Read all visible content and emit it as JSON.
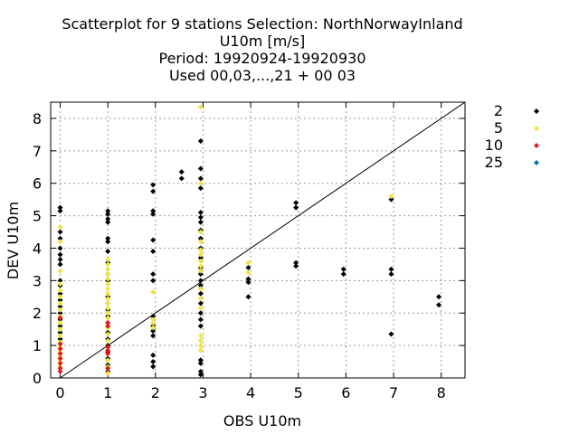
{
  "chart_data": {
    "type": "scatter",
    "title_lines": [
      "Scatterplot for    9 stations Selection: NorthNorwayInland",
      "U10m [m/s]",
      "Period: 19920924-19920930",
      "Used  00,03,...,21  + 00 03"
    ],
    "xlabel": "OBS U10m",
    "ylabel": "DEV U10m",
    "xlim": [
      -0.2,
      8.5
    ],
    "ylim": [
      0,
      8.5
    ],
    "xticks": [
      "0",
      "1",
      "2",
      "3",
      "4",
      "5",
      "6",
      "7",
      "8"
    ],
    "yticks": [
      "0",
      "1",
      "2",
      "3",
      "4",
      "5",
      "6",
      "7",
      "8"
    ],
    "grid": true,
    "diagonal_line": true,
    "legend_position": "right",
    "series": [
      {
        "name": "2",
        "color": "#000000",
        "points": [
          [
            0,
            5.25
          ],
          [
            0,
            5.15
          ],
          [
            0,
            4.5
          ],
          [
            0,
            4.3
          ],
          [
            0,
            4.0
          ],
          [
            0,
            3.8
          ],
          [
            0,
            3.65
          ],
          [
            0,
            3.5
          ],
          [
            0,
            3.0
          ],
          [
            0,
            2.85
          ],
          [
            0,
            2.6
          ],
          [
            0,
            2.4
          ],
          [
            0,
            2.2
          ],
          [
            0,
            2.0
          ],
          [
            0,
            1.8
          ],
          [
            0,
            1.6
          ],
          [
            0,
            1.4
          ],
          [
            0,
            1.2
          ],
          [
            1,
            5.15
          ],
          [
            1,
            5.05
          ],
          [
            1,
            4.9
          ],
          [
            1,
            4.8
          ],
          [
            1,
            4.3
          ],
          [
            1,
            4.2
          ],
          [
            1,
            3.9
          ],
          [
            1,
            3.55
          ],
          [
            1,
            3.2
          ],
          [
            1,
            3.0
          ],
          [
            1,
            2.5
          ],
          [
            1,
            2.3
          ],
          [
            1,
            2.1
          ],
          [
            1,
            1.9
          ],
          [
            1,
            1.7
          ],
          [
            1,
            1.4
          ],
          [
            1,
            1.2
          ],
          [
            1,
            1.0
          ],
          [
            1,
            0.8
          ],
          [
            1,
            0.6
          ],
          [
            1,
            0.4
          ],
          [
            1,
            0.2
          ],
          [
            1.95,
            5.95
          ],
          [
            1.95,
            5.75
          ],
          [
            1.95,
            5.15
          ],
          [
            1.95,
            5.05
          ],
          [
            1.95,
            4.25
          ],
          [
            1.95,
            3.9
          ],
          [
            1.95,
            3.2
          ],
          [
            1.95,
            3.0
          ],
          [
            1.95,
            1.9
          ],
          [
            1.95,
            1.6
          ],
          [
            1.95,
            1.45
          ],
          [
            1.95,
            1.3
          ],
          [
            1.95,
            0.7
          ],
          [
            1.95,
            0.5
          ],
          [
            1.95,
            0.35
          ],
          [
            2.55,
            6.35
          ],
          [
            2.55,
            6.15
          ],
          [
            2.95,
            7.3
          ],
          [
            2.95,
            6.45
          ],
          [
            2.95,
            6.15
          ],
          [
            2.95,
            5.85
          ],
          [
            2.95,
            5.1
          ],
          [
            2.95,
            4.95
          ],
          [
            2.95,
            4.8
          ],
          [
            2.95,
            4.55
          ],
          [
            2.95,
            4.3
          ],
          [
            2.95,
            4.0
          ],
          [
            2.95,
            3.7
          ],
          [
            2.95,
            3.4
          ],
          [
            2.95,
            3.2
          ],
          [
            2.95,
            3.0
          ],
          [
            2.95,
            2.85
          ],
          [
            2.95,
            2.6
          ],
          [
            2.95,
            2.3
          ],
          [
            2.95,
            2.0
          ],
          [
            2.95,
            1.8
          ],
          [
            2.95,
            1.6
          ],
          [
            2.95,
            0.55
          ],
          [
            2.95,
            0.45
          ],
          [
            2.95,
            0.2
          ],
          [
            2.95,
            0.1
          ],
          [
            3.95,
            3.4
          ],
          [
            3.95,
            3.05
          ],
          [
            3.95,
            2.95
          ],
          [
            3.95,
            2.5
          ],
          [
            4.95,
            5.4
          ],
          [
            4.95,
            5.25
          ],
          [
            4.95,
            3.55
          ],
          [
            4.95,
            3.45
          ],
          [
            5.95,
            3.35
          ],
          [
            5.95,
            3.2
          ],
          [
            6.95,
            5.5
          ],
          [
            6.95,
            3.35
          ],
          [
            6.95,
            3.2
          ],
          [
            6.95,
            1.35
          ],
          [
            7.95,
            2.5
          ],
          [
            7.95,
            2.25
          ]
        ]
      },
      {
        "name": "5",
        "color": "#f0e442",
        "points": [
          [
            0,
            4.65
          ],
          [
            0,
            4.2
          ],
          [
            0,
            3.3
          ],
          [
            0,
            2.9
          ],
          [
            0,
            2.7
          ],
          [
            0,
            2.5
          ],
          [
            0,
            2.3
          ],
          [
            0,
            2.1
          ],
          [
            0,
            1.9
          ],
          [
            0,
            1.7
          ],
          [
            0,
            1.5
          ],
          [
            0,
            1.3
          ],
          [
            0,
            1.1
          ],
          [
            0,
            0.95
          ],
          [
            0,
            0.8
          ],
          [
            0,
            0.65
          ],
          [
            0,
            0.5
          ],
          [
            0,
            0.35
          ],
          [
            1,
            3.65
          ],
          [
            1,
            3.5
          ],
          [
            1,
            3.35
          ],
          [
            1,
            3.2
          ],
          [
            1,
            3.05
          ],
          [
            1,
            2.9
          ],
          [
            1,
            2.75
          ],
          [
            1,
            2.6
          ],
          [
            1,
            2.45
          ],
          [
            1,
            2.3
          ],
          [
            1,
            2.15
          ],
          [
            1,
            2.0
          ],
          [
            1,
            1.85
          ],
          [
            1,
            1.55
          ],
          [
            1,
            1.35
          ],
          [
            1,
            1.15
          ],
          [
            1,
            0.95
          ],
          [
            1,
            0.75
          ],
          [
            1,
            0.55
          ],
          [
            1,
            0.35
          ],
          [
            1,
            0.15
          ],
          [
            1.95,
            2.65
          ],
          [
            1.95,
            1.8
          ],
          [
            1.95,
            1.7
          ],
          [
            1.95,
            1.55
          ],
          [
            2.95,
            8.35
          ],
          [
            2.95,
            6.0
          ],
          [
            2.95,
            4.5
          ],
          [
            2.95,
            4.2
          ],
          [
            2.95,
            3.95
          ],
          [
            2.95,
            3.8
          ],
          [
            2.95,
            3.6
          ],
          [
            2.95,
            3.45
          ],
          [
            2.95,
            3.3
          ],
          [
            2.95,
            2.75
          ],
          [
            2.95,
            2.45
          ],
          [
            2.95,
            2.15
          ],
          [
            2.95,
            1.3
          ],
          [
            2.95,
            1.15
          ],
          [
            2.95,
            1.0
          ],
          [
            2.95,
            0.85
          ],
          [
            3.95,
            3.55
          ],
          [
            3.95,
            3.25
          ],
          [
            6.95,
            5.6
          ]
        ]
      },
      {
        "name": "10",
        "color": "#e41a1c",
        "points": [
          [
            0,
            1.85
          ],
          [
            0,
            1.05
          ],
          [
            0,
            0.9
          ],
          [
            0,
            0.75
          ],
          [
            0,
            0.6
          ],
          [
            0,
            0.45
          ],
          [
            0,
            0.3
          ],
          [
            0,
            0.2
          ],
          [
            1,
            1.7
          ],
          [
            1,
            1.6
          ],
          [
            1,
            0.95
          ],
          [
            1,
            0.85
          ],
          [
            1,
            0.75
          ],
          [
            1,
            0.3
          ]
        ]
      },
      {
        "name": "25",
        "color": "#0072b2",
        "points": []
      }
    ]
  }
}
